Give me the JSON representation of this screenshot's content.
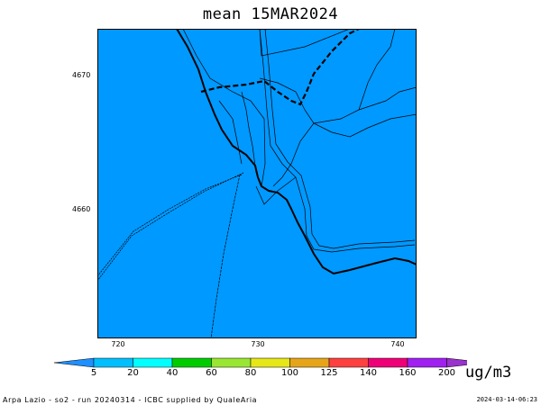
{
  "title": "mean 15MAR2024",
  "units": "ug/m3",
  "footer_left": "Arpa Lazio - so2 - run 20240314 - ICBC supplied by QualeAria",
  "footer_right": "2024-03-14-06:23",
  "axes": {
    "y_ticks": [
      "4670",
      "4660"
    ],
    "x_ticks": [
      "720",
      "730",
      "740"
    ]
  },
  "colorbar": {
    "labels": [
      "5",
      "20",
      "40",
      "60",
      "80",
      "100",
      "125",
      "140",
      "160",
      "200"
    ],
    "colors": [
      "#1e90ff",
      "#00bfff",
      "#00ffff",
      "#00cc00",
      "#99e633",
      "#e6e619",
      "#e6a519",
      "#ff4040",
      "#ee0077",
      "#a020f0",
      "#9a32cd"
    ]
  },
  "map": {
    "fill_color": "#0099ff"
  }
}
